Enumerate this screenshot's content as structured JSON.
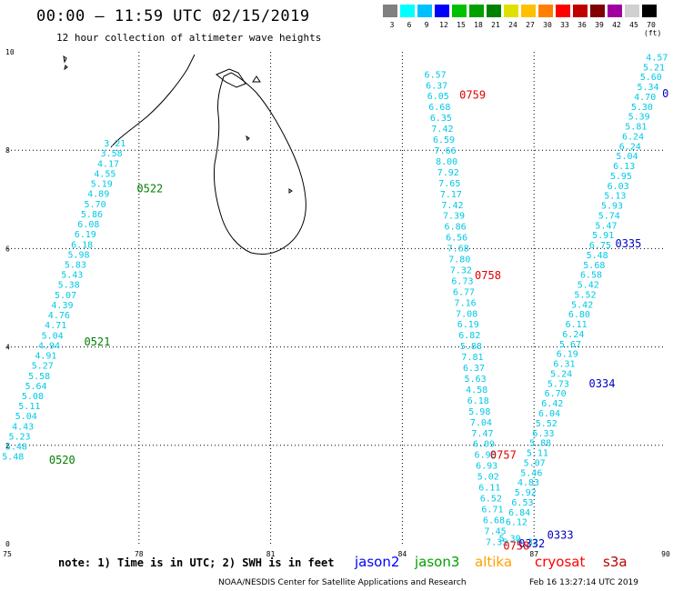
{
  "header": {
    "title": "00:00 – 11:59 UTC 02/15/2019",
    "subtitle": "12 hour collection of altimeter wave heights"
  },
  "legend": {
    "colors": [
      "#808080",
      "#00ffff",
      "#00c0ff",
      "#0000ff",
      "#00c000",
      "#00a000",
      "#008000",
      "#e0e000",
      "#ffc000",
      "#ff8000",
      "#ff0000",
      "#c00000",
      "#800000",
      "#a000a0",
      "#d0d0d0",
      "#000000"
    ],
    "labels": [
      "3",
      "6",
      "9",
      "12",
      "15",
      "18",
      "21",
      "24",
      "27",
      "30",
      "33",
      "36",
      "39",
      "42",
      "45",
      "70 (ft)"
    ]
  },
  "map": {
    "x_ticks": [
      "75",
      "78",
      "81",
      "84",
      "87",
      "90"
    ],
    "y_ticks": [
      "0",
      "2",
      "4",
      "6",
      "8",
      "10"
    ],
    "x_range": [
      75,
      90
    ],
    "y_range": [
      0,
      10
    ]
  },
  "tracks": [
    {
      "id": "track-0520-0522",
      "start": [
        75.13,
        1.78
      ],
      "end": [
        77.45,
        8.15
      ],
      "values": [
        "5.48",
        "5.48",
        "5.23",
        "4.43",
        "5.04",
        "5.11",
        "5.08",
        "5.64",
        "5.58",
        "5.27",
        "4.91",
        "4.94",
        "5.04",
        "4.71",
        "4.76",
        "4.39",
        "5.07",
        "5.38",
        "5.43",
        "5.83",
        "5.98",
        "6.18",
        "6.19",
        "6.08",
        "5.86",
        "5.70",
        "4.89",
        "5.19",
        "4.55",
        "4.17",
        "3.58",
        "3.21"
      ]
    },
    {
      "id": "track-0757-0759",
      "start": [
        84.75,
        9.55
      ],
      "end": [
        86.15,
        0.05
      ],
      "values": [
        "6.57",
        "6.37",
        "6.05",
        "6.68",
        "6.35",
        "7.42",
        "6.59",
        "7.66",
        "8.00",
        "7.92",
        "7.65",
        "7.17",
        "7.42",
        "7.39",
        "6.86",
        "6.56",
        "7.68",
        "7.80",
        "7.32",
        "6.73",
        "6.77",
        "7.16",
        "7.08",
        "6.19",
        "6.82",
        "5.88",
        "7.81",
        "6.37",
        "5.63",
        "4.58",
        "6.18",
        "5.98",
        "7.04",
        "7.47",
        "6.09",
        "6.98",
        "6.93",
        "5.02",
        "6.11",
        "6.52",
        "6.71",
        "6.68",
        "7.45",
        "7.35"
      ]
    },
    {
      "id": "track-0332-0335",
      "start": [
        86.6,
        0.45
      ],
      "end": [
        89.8,
        9.9
      ],
      "values": [
        "6.12",
        "6.84",
        "6.53",
        "5.92",
        "4.83",
        "5.46",
        "5.07",
        "5.11",
        "5.88",
        "6.33",
        "5.52",
        "6.04",
        "6.42",
        "6.70",
        "5.73",
        "5.24",
        "6.31",
        "6.19",
        "5.67",
        "6.24",
        "6.11",
        "6.80",
        "5.42",
        "5.52",
        "5.42",
        "6.58",
        "5.68",
        "5.48",
        "6.75",
        "5.91",
        "5.47",
        "5.74",
        "5.93",
        "5.13",
        "6.03",
        "5.95",
        "6.13",
        "5.04",
        "6.24",
        "6.24",
        "5.81",
        "5.39",
        "5.30",
        "4.70",
        "5.34",
        "5.60",
        "5.21",
        "4.57"
      ]
    },
    {
      "id": "track-short",
      "start": [
        86.45,
        0.12
      ],
      "end": [
        86.85,
        0.05
      ],
      "values": [
        "5.30",
        "6.32"
      ]
    }
  ],
  "pass_labels": [
    {
      "text": "0520",
      "color": "#008000",
      "lon": 75.95,
      "lat": 1.7
    },
    {
      "text": "0521",
      "color": "#008000",
      "lon": 76.75,
      "lat": 4.1
    },
    {
      "text": "0522",
      "color": "#008000",
      "lon": 77.95,
      "lat": 7.22
    },
    {
      "text": "0757",
      "color": "#e00000",
      "lon": 86.0,
      "lat": 1.8
    },
    {
      "text": "0758",
      "color": "#e00000",
      "lon": 85.65,
      "lat": 5.45
    },
    {
      "text": "0759",
      "color": "#e00000",
      "lon": 85.3,
      "lat": 9.12
    },
    {
      "text": "0332",
      "color": "#0000c0",
      "lon": 86.65,
      "lat": 0.0
    },
    {
      "text": "0333",
      "color": "#0000c0",
      "lon": 87.3,
      "lat": 0.18
    },
    {
      "text": "0334",
      "color": "#0000c0",
      "lon": 88.25,
      "lat": 3.25
    },
    {
      "text": "0335",
      "color": "#0000c0",
      "lon": 88.85,
      "lat": 6.1
    },
    {
      "text": "0",
      "color": "#0000c0",
      "lon": 89.92,
      "lat": 9.15
    },
    {
      "text": "0758",
      "color": "#e00000",
      "lon": 86.3,
      "lat": -0.05
    }
  ],
  "footer": {
    "note": "note: 1) Time is in UTC; 2) SWH is in feet",
    "satellites": [
      {
        "name": "jason2",
        "color": "#0000ff"
      },
      {
        "name": "jason3",
        "color": "#00a000"
      },
      {
        "name": "altika",
        "color": "#ffa000"
      },
      {
        "name": "cryosat",
        "color": "#ff0000"
      },
      {
        "name": "s3a",
        "color": "#c00000"
      }
    ],
    "credit": "NOAA/NESDIS Center for Satellite Applications and Research",
    "timestamp": "Feb 16 13:27:14 UTC 2019"
  }
}
